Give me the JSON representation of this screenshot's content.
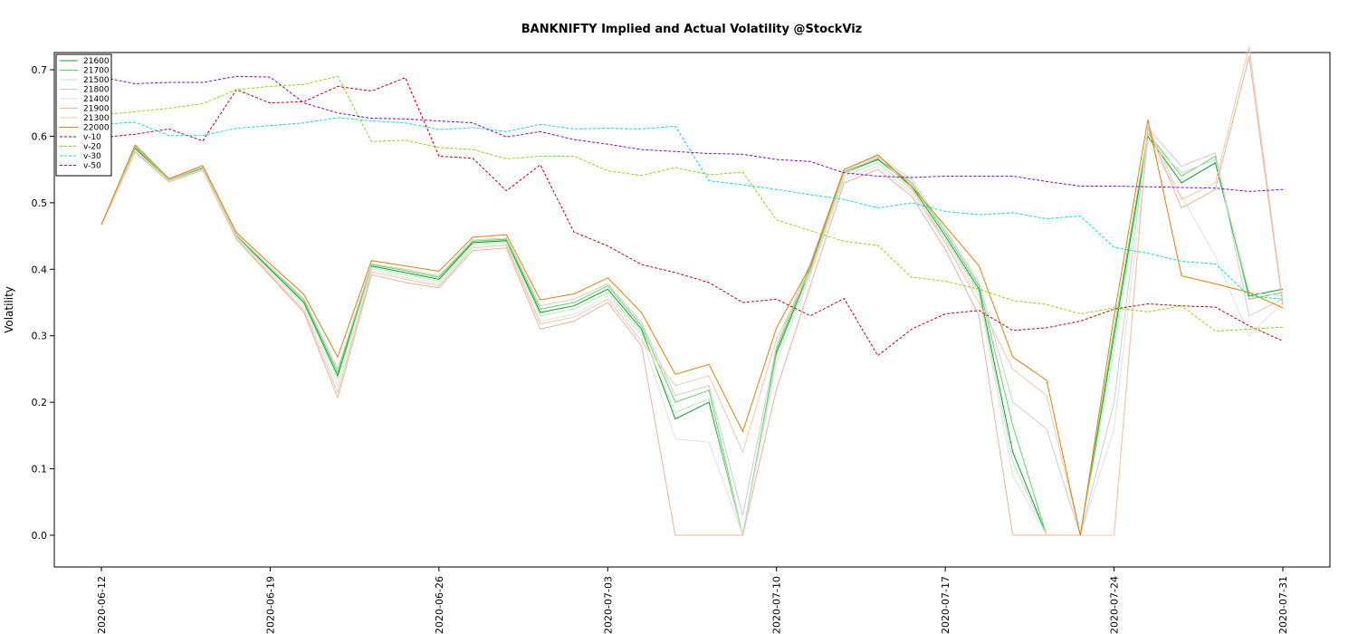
{
  "chart_data": {
    "type": "line",
    "title": "BANKNIFTY Implied and Actual Volatility @StockViz",
    "ylabel": "Volatility",
    "xlabel": "",
    "ylim": [
      -0.05,
      0.73
    ],
    "yticks": [
      0.0,
      0.1,
      0.2,
      0.3,
      0.4,
      0.5,
      0.6,
      0.7
    ],
    "ytick_labels": [
      "0.0",
      "0.1",
      "0.2",
      "0.3",
      "0.4",
      "0.5",
      "0.6",
      "0.7"
    ],
    "x_dates": [
      "2020-06-12",
      "2020-06-15",
      "2020-06-16",
      "2020-06-17",
      "2020-06-18",
      "2020-06-19",
      "2020-06-22",
      "2020-06-23",
      "2020-06-24",
      "2020-06-25",
      "2020-06-26",
      "2020-06-29",
      "2020-06-30",
      "2020-07-01",
      "2020-07-02",
      "2020-07-03",
      "2020-07-06",
      "2020-07-07",
      "2020-07-08",
      "2020-07-09",
      "2020-07-10",
      "2020-07-13",
      "2020-07-14",
      "2020-07-15",
      "2020-07-16",
      "2020-07-17",
      "2020-07-20",
      "2020-07-21",
      "2020-07-22",
      "2020-07-23",
      "2020-07-24",
      "2020-07-27",
      "2020-07-28",
      "2020-07-29",
      "2020-07-30",
      "2020-07-31"
    ],
    "x_tick_labels": [
      {
        "index": 0,
        "label": "2020-06-12"
      },
      {
        "index": 5,
        "label": "2020-06-19"
      },
      {
        "index": 10,
        "label": "2020-06-26"
      },
      {
        "index": 15,
        "label": "2020-07-03"
      },
      {
        "index": 20,
        "label": "2020-07-10"
      },
      {
        "index": 25,
        "label": "2020-07-17"
      },
      {
        "index": 30,
        "label": "2020-07-24"
      },
      {
        "index": 35,
        "label": "2020-07-31"
      }
    ],
    "grid": false,
    "legend_position": "top-left",
    "series": [
      {
        "name": "21600",
        "color": "#0b9f2a",
        "dashed": false,
        "values": [
          0.467,
          0.582,
          0.534,
          0.552,
          0.45,
          0.4,
          0.35,
          0.24,
          0.405,
          0.395,
          0.385,
          0.44,
          0.443,
          0.335,
          0.345,
          0.37,
          0.31,
          0.175,
          0.2,
          0.0,
          0.275,
          0.4,
          0.545,
          0.565,
          0.525,
          0.45,
          0.37,
          0.125,
          0.0,
          0.0,
          0.3,
          0.6,
          0.53,
          0.56,
          0.36,
          0.37
        ]
      },
      {
        "name": "21700",
        "color": "#66d266",
        "dashed": false,
        "values": [
          0.467,
          0.584,
          0.534,
          0.553,
          0.451,
          0.402,
          0.353,
          0.245,
          0.407,
          0.398,
          0.388,
          0.442,
          0.445,
          0.34,
          0.35,
          0.375,
          0.315,
          0.2,
          0.218,
          0.0,
          0.28,
          0.405,
          0.547,
          0.567,
          0.53,
          0.455,
          0.375,
          0.165,
          0.0,
          0.0,
          0.31,
          0.605,
          0.54,
          0.57,
          0.355,
          0.365
        ]
      },
      {
        "name": "21500",
        "color": "#b8e6b8",
        "dashed": false,
        "values": [
          0.467,
          0.58,
          0.533,
          0.551,
          0.449,
          0.398,
          0.347,
          0.235,
          0.403,
          0.392,
          0.382,
          0.438,
          0.441,
          0.33,
          0.34,
          0.365,
          0.305,
          0.185,
          0.205,
          0.0,
          0.27,
          0.395,
          0.54,
          0.56,
          0.52,
          0.445,
          0.365,
          0.11,
          0.0,
          0.0,
          0.28,
          0.595,
          0.545,
          0.565,
          0.365,
          0.36
        ]
      },
      {
        "name": "21800",
        "color": "#cccccc",
        "dashed": false,
        "values": [
          0.467,
          0.585,
          0.535,
          0.554,
          0.452,
          0.403,
          0.356,
          0.25,
          0.408,
          0.4,
          0.39,
          0.444,
          0.447,
          0.345,
          0.355,
          0.378,
          0.32,
          0.21,
          0.225,
          0.03,
          0.285,
          0.41,
          0.55,
          0.57,
          0.535,
          0.46,
          0.38,
          0.2,
          0.16,
          0.0,
          0.2,
          0.612,
          0.555,
          0.575,
          0.33,
          0.355
        ]
      },
      {
        "name": "21400",
        "color": "#e0e0e0",
        "dashed": false,
        "values": [
          0.467,
          0.578,
          0.532,
          0.55,
          0.447,
          0.395,
          0.342,
          0.225,
          0.4,
          0.388,
          0.378,
          0.435,
          0.438,
          0.322,
          0.332,
          0.36,
          0.3,
          0.145,
          0.14,
          0.0,
          0.26,
          0.39,
          0.535,
          0.555,
          0.515,
          0.44,
          0.36,
          0.09,
          0.0,
          0.0,
          0.16,
          0.59,
          0.51,
          0.42,
          0.3,
          0.35
        ]
      },
      {
        "name": "21900",
        "color": "#e7b39a",
        "dashed": false,
        "values": [
          0.467,
          0.576,
          0.531,
          0.549,
          0.445,
          0.39,
          0.335,
          0.207,
          0.392,
          0.38,
          0.372,
          0.428,
          0.432,
          0.31,
          0.322,
          0.35,
          0.285,
          0.0,
          0.0,
          0.0,
          0.22,
          0.375,
          0.53,
          0.55,
          0.51,
          0.43,
          0.33,
          0.0,
          0.0,
          0.0,
          0.0,
          0.612,
          0.492,
          0.52,
          0.72,
          0.345
        ]
      },
      {
        "name": "21300",
        "color": "#f0c8a8",
        "dashed": false,
        "values": [
          0.467,
          0.577,
          0.531,
          0.549,
          0.446,
          0.392,
          0.338,
          0.215,
          0.396,
          0.385,
          0.375,
          0.432,
          0.436,
          0.318,
          0.328,
          0.355,
          0.292,
          0.225,
          0.24,
          0.125,
          0.295,
          0.398,
          0.545,
          0.568,
          0.522,
          0.44,
          0.35,
          0.25,
          0.21,
          0.0,
          0.0,
          0.615,
          0.505,
          0.53,
          0.735,
          0.35
        ]
      },
      {
        "name": "22000",
        "color": "#e08000",
        "dashed": false,
        "values": [
          0.467,
          0.587,
          0.536,
          0.556,
          0.455,
          0.408,
          0.362,
          0.268,
          0.413,
          0.405,
          0.397,
          0.448,
          0.452,
          0.354,
          0.363,
          0.387,
          0.335,
          0.242,
          0.257,
          0.156,
          0.312,
          0.405,
          0.55,
          0.572,
          0.525,
          0.465,
          0.405,
          0.268,
          0.233,
          0.0,
          0.33,
          0.625,
          0.39,
          0.378,
          0.365,
          0.342
        ]
      },
      {
        "name": "v-10",
        "color": "#cc0000",
        "dashed": true,
        "values": [
          0.598,
          0.603,
          0.611,
          0.593,
          0.67,
          0.65,
          0.652,
          0.675,
          0.668,
          0.688,
          0.57,
          0.567,
          0.518,
          0.557,
          0.456,
          0.435,
          0.407,
          0.395,
          0.38,
          0.35,
          0.355,
          0.33,
          0.356,
          0.27,
          0.31,
          0.333,
          0.338,
          0.308,
          0.312,
          0.322,
          0.34,
          0.348,
          0.345,
          0.343,
          0.315,
          0.292
        ]
      },
      {
        "name": "v-20",
        "color": "#80e000",
        "dashed": true,
        "values": [
          0.632,
          0.637,
          0.642,
          0.649,
          0.67,
          0.675,
          0.678,
          0.69,
          0.592,
          0.594,
          0.583,
          0.58,
          0.566,
          0.57,
          0.57,
          0.548,
          0.541,
          0.553,
          0.542,
          0.546,
          0.474,
          0.458,
          0.442,
          0.436,
          0.388,
          0.382,
          0.37,
          0.353,
          0.347,
          0.333,
          0.342,
          0.336,
          0.345,
          0.307,
          0.31,
          0.313
        ]
      },
      {
        "name": "v-30",
        "color": "#00e0e0",
        "dashed": true,
        "values": [
          0.618,
          0.621,
          0.601,
          0.601,
          0.612,
          0.616,
          0.62,
          0.628,
          0.623,
          0.62,
          0.61,
          0.613,
          0.607,
          0.618,
          0.611,
          0.612,
          0.611,
          0.615,
          0.533,
          0.527,
          0.52,
          0.512,
          0.505,
          0.492,
          0.5,
          0.487,
          0.482,
          0.485,
          0.476,
          0.48,
          0.433,
          0.424,
          0.412,
          0.408,
          0.36,
          0.355
        ]
      },
      {
        "name": "v-50",
        "color": "#8000e0",
        "dashed": true,
        "values": [
          0.689,
          0.679,
          0.681,
          0.681,
          0.69,
          0.689,
          0.65,
          0.635,
          0.627,
          0.626,
          0.623,
          0.62,
          0.599,
          0.607,
          0.595,
          0.588,
          0.58,
          0.577,
          0.574,
          0.573,
          0.565,
          0.562,
          0.545,
          0.54,
          0.538,
          0.54,
          0.54,
          0.54,
          0.532,
          0.525,
          0.525,
          0.524,
          0.523,
          0.522,
          0.517,
          0.52
        ]
      }
    ]
  }
}
